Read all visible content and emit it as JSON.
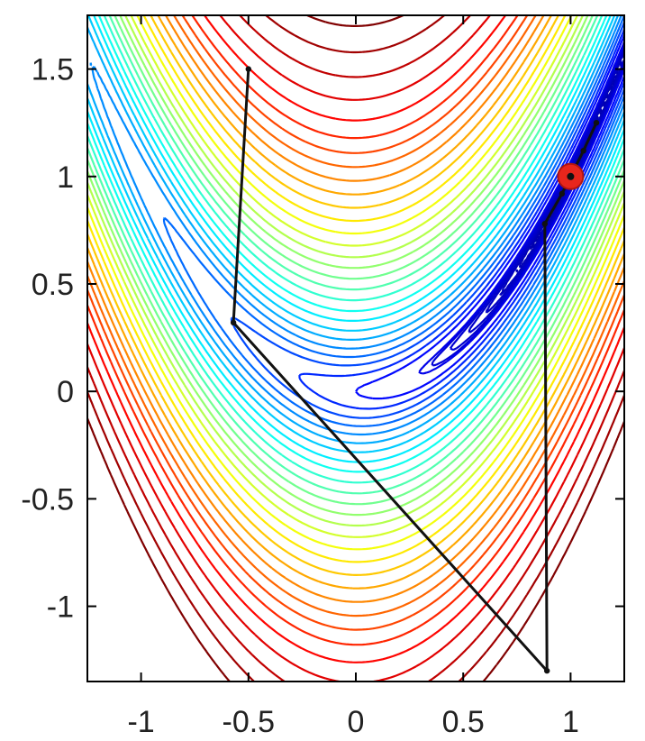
{
  "chart_data": {
    "type": "contour",
    "title": "",
    "xlabel": "",
    "ylabel": "",
    "xlim": [
      -1.25,
      1.25
    ],
    "ylim": [
      -1.35,
      1.75
    ],
    "xticks": [
      {
        "value": -1,
        "label": "-1"
      },
      {
        "value": -0.5,
        "label": "-0.5"
      },
      {
        "value": 0,
        "label": "0"
      },
      {
        "value": 0.5,
        "label": "0.5"
      },
      {
        "value": 1,
        "label": "1"
      }
    ],
    "yticks": [
      {
        "value": 1.5,
        "label": "1.5"
      },
      {
        "value": 1,
        "label": "1"
      },
      {
        "value": 0.5,
        "label": "0.5"
      },
      {
        "value": 0,
        "label": "0"
      },
      {
        "value": -0.5,
        "label": "-0.5"
      },
      {
        "value": -1,
        "label": "-1"
      }
    ],
    "function": "rosenbrock",
    "contour_levels": [
      0.5,
      1,
      1.6,
      2.5,
      3.6,
      5,
      6.8,
      9,
      11.8,
      15,
      19,
      23.5,
      28.5,
      34,
      40,
      47,
      55,
      64,
      74,
      85,
      97,
      110,
      124,
      140,
      160,
      185,
      215,
      250,
      290
    ],
    "dense_contour_levels": [
      0.008,
      0.02,
      0.04,
      0.07,
      0.11,
      0.16,
      0.23,
      0.32,
      0.42
    ],
    "colormap": [
      "#00008f",
      "#0000ff",
      "#0080ff",
      "#00ffff",
      "#80ff80",
      "#ffff00",
      "#ff8000",
      "#ff0000",
      "#800000"
    ],
    "optimizer_path": [
      {
        "x": -0.5,
        "y": 1.5
      },
      {
        "x": -0.57,
        "y": 0.32
      },
      {
        "x": 0.89,
        "y": -1.3
      },
      {
        "x": 0.88,
        "y": 0.78
      },
      {
        "x": 0.96,
        "y": 0.92
      },
      {
        "x": 1.0,
        "y": 1.0
      },
      {
        "x": 1.06,
        "y": 1.12
      },
      {
        "x": 1.12,
        "y": 1.25
      }
    ],
    "minimum": {
      "x": 1,
      "y": 1,
      "color": "#e8261c"
    },
    "path_color": "#111111"
  }
}
